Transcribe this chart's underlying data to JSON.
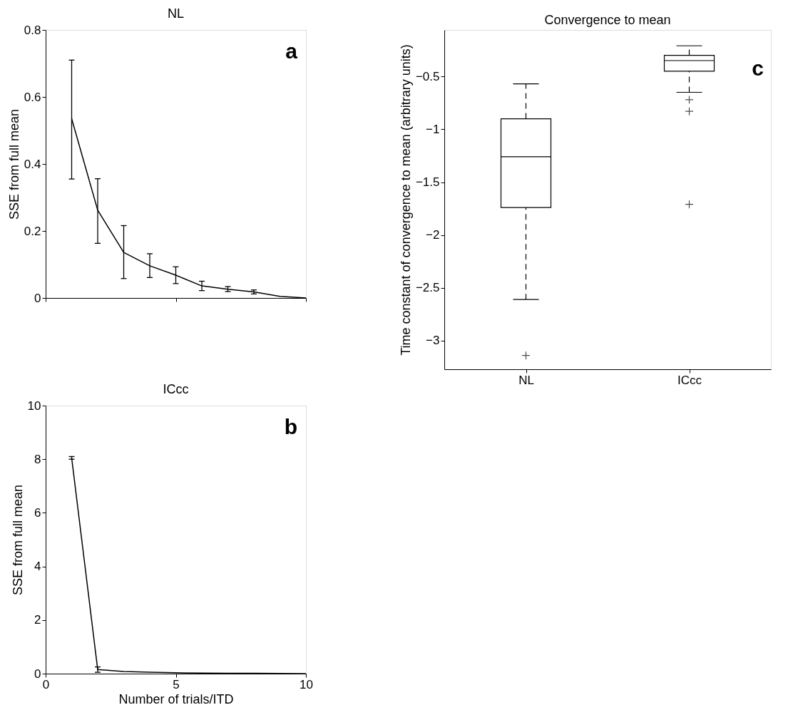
{
  "chart_data": [
    {
      "type": "line",
      "title": "NL",
      "ylabel": "SSE from full mean",
      "annotations": [
        "a"
      ],
      "x": [
        1,
        2,
        3,
        4,
        5,
        6,
        7,
        8,
        9,
        10
      ],
      "series": [
        {
          "color": "#000000",
          "values": [
            0.535,
            0.262,
            0.136,
            0.096,
            0.068,
            0.036,
            0.026,
            0.018,
            0.005,
            0
          ],
          "errors": [
            [
              0.355,
              0.71
            ],
            [
              0.163,
              0.356
            ],
            [
              0.058,
              0.216
            ],
            [
              0.061,
              0.132
            ],
            [
              0.043,
              0.093
            ],
            [
              0.022,
              0.05
            ],
            [
              0.019,
              0.034
            ],
            [
              0.012,
              0.024
            ],
            null,
            null
          ]
        }
      ],
      "xlim": [
        0,
        10
      ],
      "xticks": [
        0,
        5,
        10
      ],
      "ylim": [
        0,
        0.8
      ],
      "yticks": [
        {
          "value": 0,
          "label": "0"
        },
        0.2,
        0.4,
        0.6,
        0.8
      ],
      "tick_labels": "y",
      "grid": false
    },
    {
      "type": "line",
      "title": "ICcc",
      "xlabel": "Number of trials/ITD",
      "ylabel": "SSE from full mean",
      "annotations": [
        "b"
      ],
      "x": [
        1,
        2,
        3,
        4,
        5,
        6,
        7,
        8,
        9,
        10
      ],
      "series": [
        {
          "color": "#000000",
          "values": [
            8.05,
            0.15,
            0.08,
            0.05,
            0.03,
            0.02,
            0.01,
            0.01,
            0.005,
            0
          ],
          "errors": [
            [
              8.0,
              8.1
            ],
            [
              0.05,
              0.25
            ],
            null,
            null,
            null,
            null,
            null,
            null,
            null,
            null
          ]
        }
      ],
      "xlim": [
        0,
        10
      ],
      "xticks": [
        0,
        5,
        10
      ],
      "ylim": [
        0,
        10
      ],
      "yticks": [
        0,
        2,
        4,
        6,
        8,
        10
      ],
      "grid": false
    },
    {
      "type": "box",
      "title": "Convergence to mean",
      "ylabel": "Time constant of convergence to mean (arbitrary units)",
      "annotations": [
        "c"
      ],
      "categories": [
        "NL",
        "ICcc"
      ],
      "boxes": [
        {
          "low": -2.61,
          "q1": -1.74,
          "median": -1.26,
          "q3": -0.9,
          "high": -0.57,
          "outliers": [
            -3.14
          ]
        },
        {
          "low": -0.65,
          "q1": -0.45,
          "median": -0.35,
          "q3": -0.3,
          "high": -0.21,
          "outliers": [
            -0.72,
            -0.83,
            -1.71
          ]
        }
      ],
      "ylim": [
        -3.27,
        -0.06
      ],
      "yticks": [
        {
          "value": -3,
          "label": "−3"
        },
        {
          "value": -2.5,
          "label": "−2.5"
        },
        {
          "value": -2,
          "label": "−2"
        },
        {
          "value": -1.5,
          "label": "−1.5"
        },
        {
          "value": -1,
          "label": "−1"
        },
        {
          "value": -0.5,
          "label": "−0.5"
        }
      ],
      "line_style": "dashed",
      "marker": "cross",
      "grid": false
    }
  ]
}
